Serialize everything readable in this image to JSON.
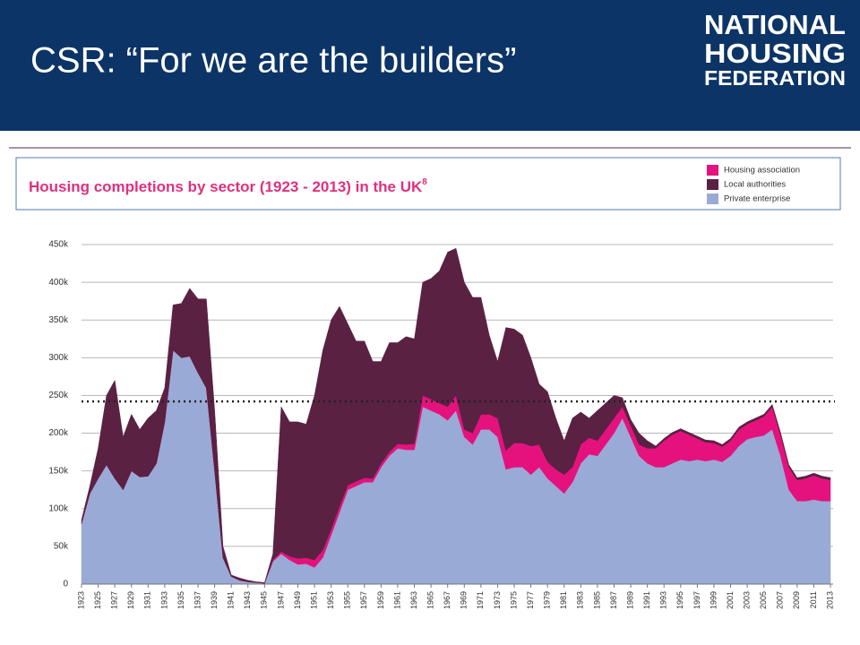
{
  "slide": {
    "title": "CSR: “For we are the builders”",
    "logo": [
      "NATIONAL",
      "HOUSING",
      "FEDERATION"
    ]
  },
  "chart_data": {
    "type": "stacked_area",
    "title": "Housing completions by sector (1923 - 2013) in the UK",
    "title_footnote": "8",
    "x": [
      1923,
      1924,
      1925,
      1926,
      1927,
      1928,
      1929,
      1930,
      1931,
      1932,
      1933,
      1934,
      1935,
      1936,
      1937,
      1938,
      1939,
      1940,
      1941,
      1942,
      1943,
      1944,
      1945,
      1946,
      1947,
      1948,
      1949,
      1950,
      1951,
      1952,
      1953,
      1954,
      1955,
      1956,
      1957,
      1958,
      1959,
      1960,
      1961,
      1962,
      1963,
      1964,
      1965,
      1966,
      1967,
      1968,
      1969,
      1970,
      1971,
      1972,
      1973,
      1974,
      1975,
      1976,
      1977,
      1978,
      1979,
      1980,
      1981,
      1982,
      1983,
      1984,
      1985,
      1986,
      1987,
      1988,
      1989,
      1990,
      1991,
      1992,
      1993,
      1994,
      1995,
      1996,
      1997,
      1998,
      1999,
      2000,
      2001,
      2002,
      2003,
      2004,
      2005,
      2006,
      2007,
      2008,
      2009,
      2010,
      2011,
      2012,
      2013
    ],
    "series": [
      {
        "name": "Private enterprise",
        "color": "#9aaad6",
        "values": [
          80000,
          120000,
          140000,
          158000,
          140000,
          125000,
          150000,
          142000,
          143000,
          160000,
          215000,
          310000,
          300000,
          302000,
          280000,
          260000,
          150000,
          35000,
          10000,
          5000,
          3000,
          2000,
          1000,
          30000,
          40000,
          32000,
          26000,
          27000,
          22000,
          35000,
          65000,
          95000,
          125000,
          130000,
          135000,
          135000,
          155000,
          170000,
          180000,
          178000,
          178000,
          235000,
          230000,
          225000,
          217000,
          230000,
          195000,
          185000,
          205000,
          205000,
          195000,
          152000,
          155000,
          155000,
          145000,
          155000,
          140000,
          130000,
          120000,
          135000,
          160000,
          172000,
          170000,
          185000,
          200000,
          220000,
          195000,
          170000,
          160000,
          155000,
          155000,
          160000,
          165000,
          163000,
          165000,
          163000,
          165000,
          162000,
          170000,
          183000,
          192000,
          195000,
          197000,
          205000,
          170000,
          125000,
          110000,
          110000,
          112000,
          110000,
          110000
        ]
      },
      {
        "name": "Housing association",
        "color": "#e5127d",
        "values": [
          0,
          0,
          0,
          0,
          0,
          0,
          0,
          0,
          0,
          0,
          0,
          0,
          0,
          0,
          0,
          0,
          0,
          0,
          0,
          0,
          0,
          0,
          0,
          2000,
          3000,
          5000,
          8000,
          8000,
          10000,
          10000,
          8000,
          8000,
          6000,
          6000,
          6000,
          5000,
          5000,
          5000,
          6000,
          7000,
          8000,
          15000,
          15000,
          15000,
          18000,
          20000,
          10000,
          15000,
          20000,
          20000,
          25000,
          25000,
          32000,
          32000,
          38000,
          30000,
          22000,
          22000,
          25000,
          20000,
          25000,
          22000,
          20000,
          20000,
          20000,
          15000,
          15000,
          15000,
          20000,
          25000,
          35000,
          38000,
          38000,
          35000,
          28000,
          25000,
          22000,
          20000,
          20000,
          22000,
          20000,
          22000,
          25000,
          30000,
          28000,
          30000,
          28000,
          30000,
          32000,
          30000,
          28000
        ]
      },
      {
        "name": "Local authorities",
        "color": "#5a2142",
        "values": [
          5000,
          10000,
          40000,
          92000,
          130000,
          70000,
          75000,
          63000,
          77000,
          70000,
          45000,
          60000,
          72000,
          90000,
          98000,
          118000,
          80000,
          15000,
          2000,
          3000,
          2000,
          1000,
          1000,
          8000,
          192000,
          178000,
          181000,
          177000,
          218000,
          265000,
          277000,
          265000,
          214000,
          186000,
          181000,
          155000,
          135000,
          145000,
          134000,
          143000,
          139000,
          150000,
          160000,
          175000,
          205000,
          195000,
          195000,
          180000,
          155000,
          105000,
          75000,
          163000,
          151000,
          143000,
          117000,
          80000,
          93000,
          68000,
          45000,
          65000,
          43000,
          26000,
          40000,
          35000,
          30000,
          12000,
          8000,
          15000,
          10000,
          3000,
          3000,
          3000,
          3000,
          3000,
          3000,
          3000,
          3000,
          3000,
          3000,
          3000,
          3000,
          3000,
          3000,
          3000,
          3000,
          3000,
          3000,
          3000,
          3000,
          3000,
          3000
        ]
      }
    ],
    "legend_order": [
      1,
      2,
      0
    ],
    "reference_value": 242000,
    "xlim": [
      1923,
      2013
    ],
    "xticks": [
      1923,
      1925,
      1927,
      1929,
      1931,
      1933,
      1935,
      1937,
      1939,
      1941,
      1943,
      1945,
      1947,
      1949,
      1951,
      1953,
      1955,
      1957,
      1959,
      1961,
      1963,
      1965,
      1967,
      1969,
      1971,
      1973,
      1975,
      1977,
      1979,
      1981,
      1983,
      1985,
      1987,
      1989,
      1991,
      1993,
      1995,
      1997,
      1999,
      2001,
      2003,
      2005,
      2007,
      2009,
      2011,
      2013
    ],
    "ylim": [
      0,
      450000
    ],
    "yticks": [
      0,
      {
        "value": 50000,
        "label": "50k"
      },
      {
        "value": 100000,
        "label": "100k"
      },
      {
        "value": 150000,
        "label": "150k"
      },
      {
        "value": 200000,
        "label": "200k"
      },
      {
        "value": 250000,
        "label": "250k"
      },
      {
        "value": 300000,
        "label": "300k"
      },
      {
        "value": 350000,
        "label": "350k"
      },
      {
        "value": 400000,
        "label": "400k"
      },
      {
        "value": 450000,
        "label": "450k"
      }
    ],
    "grid": true
  }
}
